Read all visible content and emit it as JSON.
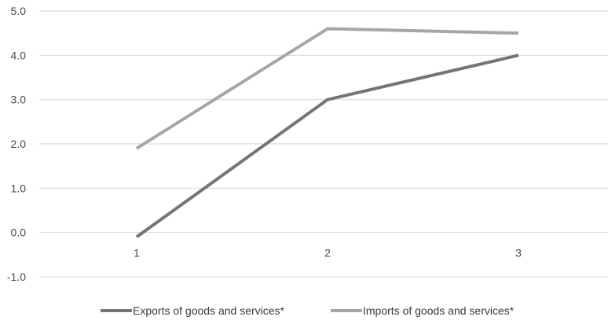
{
  "chart_data": {
    "type": "line",
    "categories": [
      "1",
      "2",
      "3"
    ],
    "series": [
      {
        "name": "Exports of goods and services*",
        "values": [
          -0.1,
          3.0,
          4.0
        ],
        "color": "#757575"
      },
      {
        "name": "Imports of goods and services*",
        "values": [
          1.9,
          4.6,
          4.5
        ],
        "color": "#a6a6a6"
      }
    ],
    "y_ticks": [
      "-1.0",
      "0.0",
      "1.0",
      "2.0",
      "3.0",
      "4.0",
      "5.0"
    ],
    "ylim": [
      -1,
      5
    ],
    "title": "",
    "xlabel": "",
    "ylabel": "",
    "grid": true,
    "legend_position": "bottom",
    "gridline_color": "#d9d9d9"
  }
}
